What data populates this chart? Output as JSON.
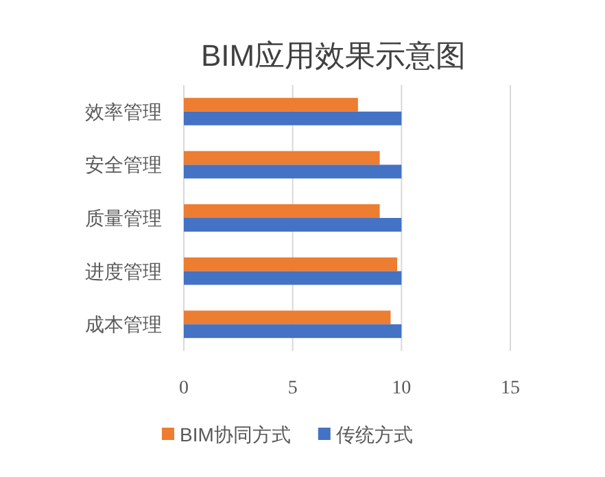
{
  "chart_data": {
    "type": "bar",
    "orientation": "horizontal",
    "title": "BIM应用效果示意图",
    "categories": [
      "效率管理",
      "安全管理",
      "质量管理",
      "进度管理",
      "成本管理"
    ],
    "series": [
      {
        "name": "BIM协同方式",
        "color": "#ed7d31",
        "values": [
          8,
          9,
          9,
          9.8,
          9.5
        ]
      },
      {
        "name": "传统方式",
        "color": "#4472c4",
        "values": [
          10,
          10,
          10,
          10,
          10
        ]
      }
    ],
    "xlim": [
      0,
      15
    ],
    "xticks": [
      0,
      5,
      10,
      15
    ],
    "grid": "x",
    "legend": "bottom"
  }
}
